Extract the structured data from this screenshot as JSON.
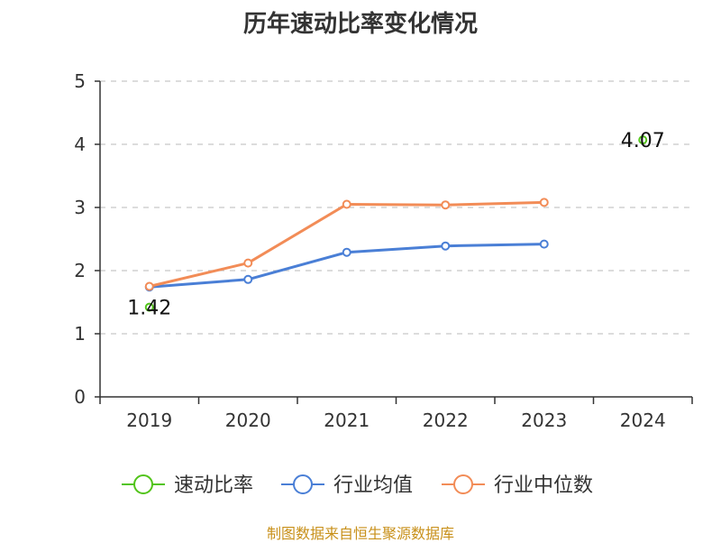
{
  "chart_data": {
    "type": "line",
    "title": "历年速动比率变化情况",
    "categories": [
      "2019",
      "2020",
      "2021",
      "2022",
      "2023",
      "2024"
    ],
    "ylim": [
      0,
      5
    ],
    "yticks": [
      "0",
      "1",
      "2",
      "3",
      "4",
      "5"
    ],
    "grid": true,
    "legend_position": "bottom",
    "series": [
      {
        "name": "速动比率",
        "color": "#52c41a",
        "values": [
          1.42,
          null,
          null,
          null,
          null,
          4.07
        ],
        "labels": [
          "1.42",
          "",
          "",
          "",
          "",
          "4.07"
        ]
      },
      {
        "name": "行业均值",
        "color": "#4a7fd6",
        "values": [
          1.74,
          1.86,
          2.29,
          2.39,
          2.42,
          null
        ]
      },
      {
        "name": "行业中位数",
        "color": "#f28c57",
        "values": [
          1.75,
          2.12,
          3.05,
          3.04,
          3.08,
          null
        ]
      }
    ]
  },
  "source": "制图数据来自恒生聚源数据库"
}
